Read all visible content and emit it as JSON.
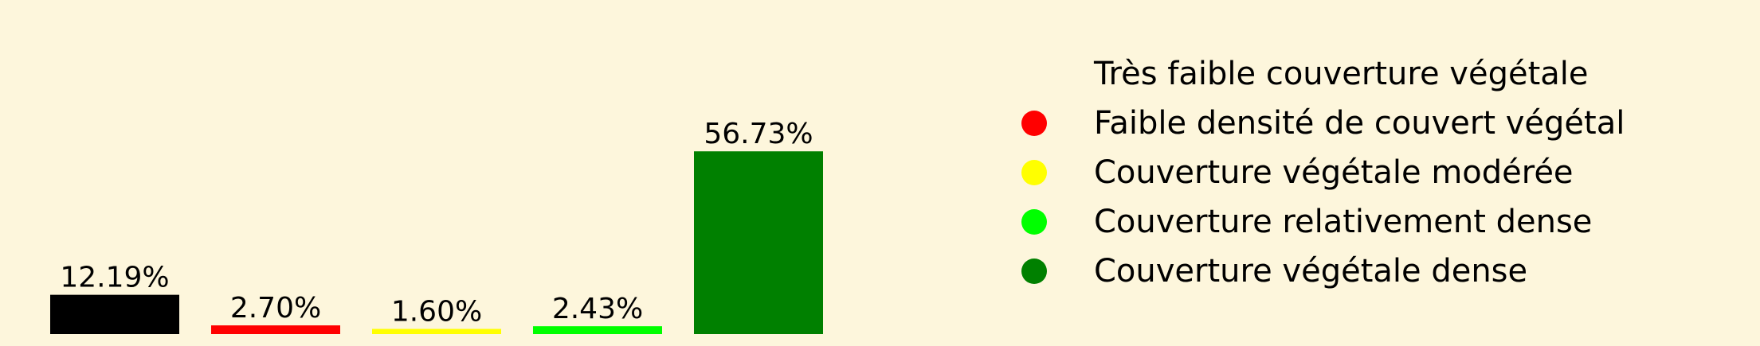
{
  "colors": {
    "background": "#fdf6dc"
  },
  "chart_data": {
    "type": "bar",
    "title": "",
    "xlabel": "",
    "ylabel": "",
    "ylim": [
      0,
      60
    ],
    "grid": false,
    "axes_visible": false,
    "legend_placement": "right",
    "categories": [
      "Très faible couverture végétale",
      "Faible densité de couvert végétal",
      "Couverture végétale modérée",
      "Couverture relativement dense",
      "Couverture végétale dense"
    ],
    "values": [
      12.19,
      2.7,
      1.6,
      2.43,
      56.73
    ],
    "data_labels": [
      "12.19%",
      "2.70%",
      "1.60%",
      "2.43%",
      "56.73%"
    ],
    "colors": [
      "#000000",
      "#ff0000",
      "#ffff00",
      "#00ff00",
      "#008000"
    ],
    "legend": [
      "Très faible couverture végétale",
      "Faible densité de couvert végétal",
      "Couverture végétale modérée",
      "Couverture relativement dense",
      "Couverture végétale dense"
    ]
  }
}
